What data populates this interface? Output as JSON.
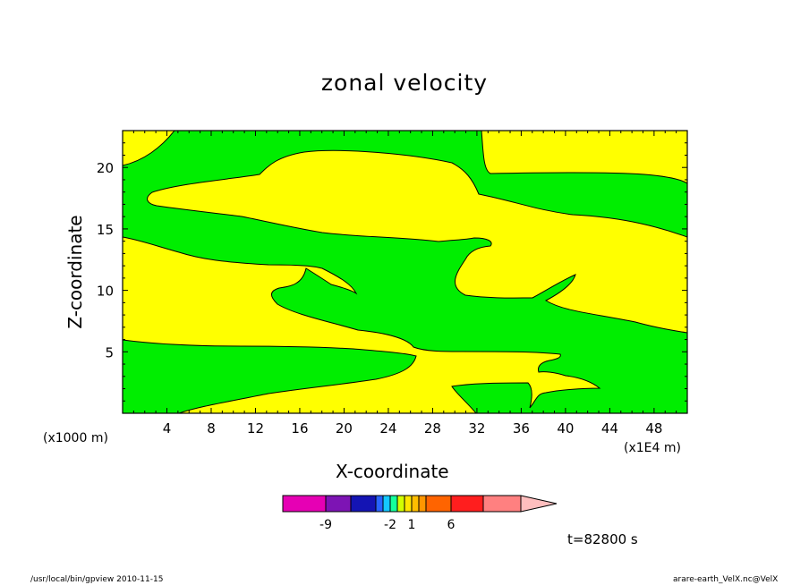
{
  "chart_data": {
    "type": "contour",
    "title": "zonal velocity",
    "xlabel": "X-coordinate",
    "ylabel": "Z-coordinate",
    "x_unit_label": "(x1E4 m)",
    "y_unit_label": "(x1000 m)",
    "xlim": [
      0,
      51
    ],
    "ylim": [
      0,
      23
    ],
    "x_ticks": [
      "4",
      "8",
      "12",
      "16",
      "20",
      "24",
      "28",
      "32",
      "36",
      "40",
      "44",
      "48"
    ],
    "y_ticks": [
      "5",
      "10",
      "15",
      "20"
    ],
    "fill_colors": {
      "positive": "#ffff00",
      "near_zero": "#00ee00"
    },
    "colorbar": {
      "colors": [
        "#e600b4",
        "#7d14b4",
        "#1414b4",
        "#2864ff",
        "#14c8ff",
        "#14ff9c",
        "#d2ff00",
        "#ffe600",
        "#ffbe00",
        "#ff9600",
        "#ff6400",
        "#ff1e1e",
        "#ff8080",
        "#ffbebe"
      ],
      "tick_labels": [
        "-9",
        "-2",
        "1",
        "6"
      ]
    },
    "annotation": "t=82800 s"
  },
  "footer": {
    "left": "/usr/local/bin/gpview  2010-11-15",
    "right": "arare-earth_VelX.nc@VelX"
  }
}
